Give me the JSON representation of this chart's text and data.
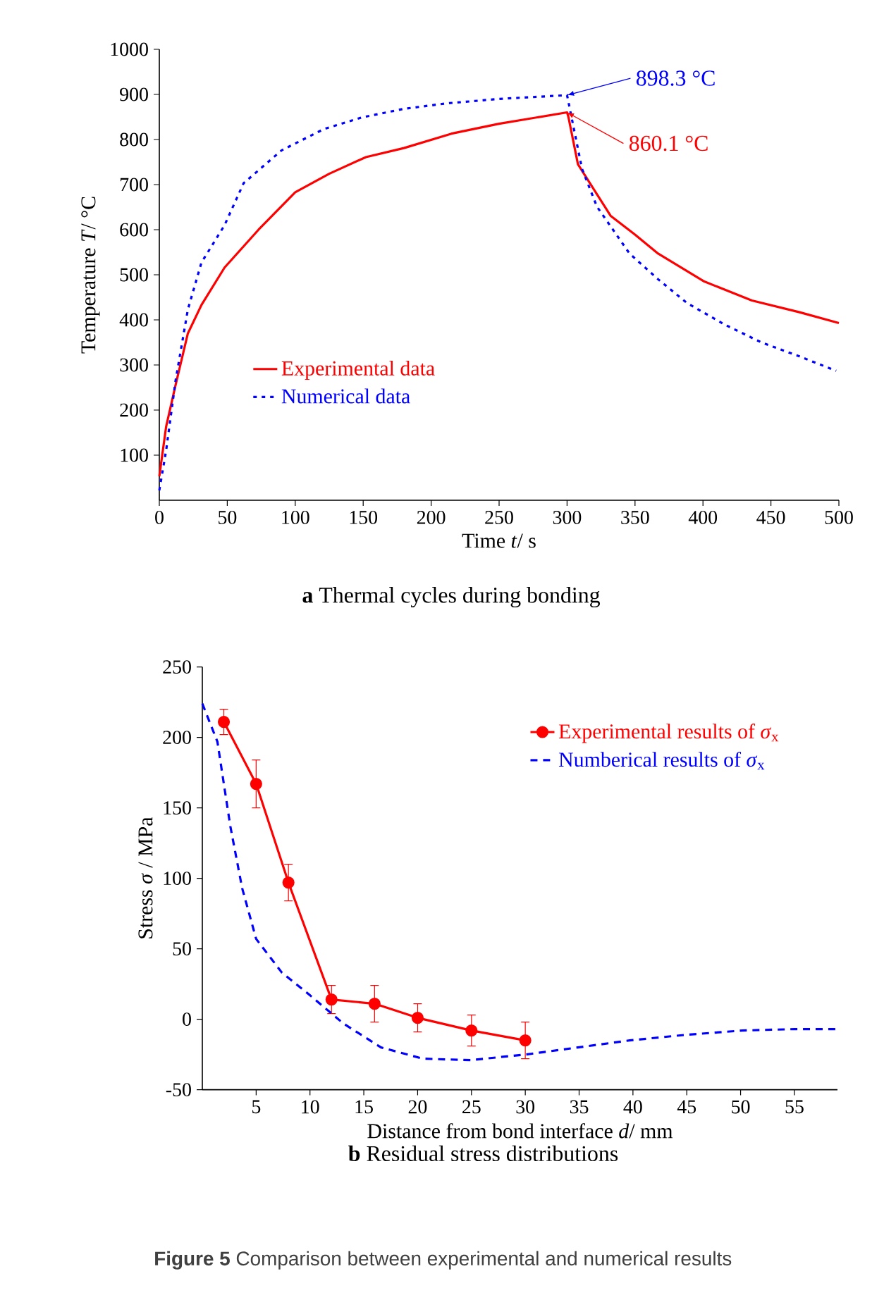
{
  "chart_data": [
    {
      "type": "line",
      "title": "**a** Thermal cycles during bonding",
      "xlabel": "Time *t*/ s",
      "ylabel": "Temperature *T*/ °C",
      "xlim": [
        0,
        500
      ],
      "ylim": [
        0,
        1000
      ],
      "xticks": [
        0,
        50,
        100,
        150,
        200,
        250,
        300,
        350,
        400,
        450,
        500
      ],
      "yticks": [
        100,
        200,
        300,
        400,
        500,
        600,
        700,
        800,
        900,
        1000
      ],
      "legend": "left",
      "annotations": [
        {
          "text": "898.3 °C",
          "x": 300,
          "y": 898.3
        },
        {
          "text": "860.1 °C",
          "x": 300,
          "y": 860.1
        }
      ],
      "series": [
        {
          "name": "Experimental data",
          "color": "#ff0000",
          "line_style": "solid",
          "x": [
            0,
            5,
            12,
            21,
            31,
            48,
            73,
            100,
            125,
            152,
            180,
            215,
            250,
            300,
            301,
            308,
            332,
            350,
            367,
            401,
            436,
            471,
            500
          ],
          "values": [
            53,
            163,
            256,
            370,
            433,
            516,
            600,
            683,
            724,
            761,
            781,
            813,
            835,
            860.1,
            850,
            745,
            631,
            589,
            547,
            485,
            443,
            417,
            393
          ]
        },
        {
          "name": "Numerical data",
          "color": "#0000ff",
          "line_style": "dotted",
          "x": [
            0,
            5,
            12,
            21,
            31,
            48,
            62,
            90,
            121,
            149,
            180,
            211,
            250,
            300,
            311,
            322,
            346,
            367,
            388,
            415,
            443,
            471,
            498
          ],
          "values": [
            22,
            110,
            266,
            423,
            527,
            610,
            703,
            776,
            823,
            849,
            868,
            880,
            890,
            898.3,
            735,
            651,
            547,
            490,
            438,
            391,
            350,
            319,
            287
          ]
        }
      ]
    },
    {
      "type": "line",
      "title": "**b** Residual stress distributions",
      "xlabel": "Distance from bond interface *d*/ mm",
      "ylabel": "Stress *σ* / MPa",
      "xlim": [
        0,
        59
      ],
      "ylim": [
        -50,
        250
      ],
      "xticks": [
        5,
        10,
        15,
        20,
        25,
        30,
        35,
        40,
        45,
        50,
        55
      ],
      "yticks": [
        -50,
        0,
        50,
        100,
        150,
        200,
        250
      ],
      "legend": "top right",
      "annotations": [
        "**Figure 5** Comparison between experimental and numerical results"
      ],
      "series": [
        {
          "name": "Experimental results of *σ*$_{x}$",
          "color": "#ff0000",
          "marker": "circle",
          "line_style": "solid",
          "x": [
            2,
            5,
            8,
            12,
            16,
            20,
            25,
            30
          ],
          "values": [
            211,
            167,
            97,
            14,
            11,
            1,
            -8,
            -15
          ],
          "errors": [
            9,
            17,
            13,
            10,
            13,
            10,
            11,
            13
          ]
        },
        {
          "name": "Numberical results of *σ*$_{x}$",
          "color": "#0000ff",
          "marker": "none",
          "line_style": "dashed",
          "x": [
            0,
            1.4,
            2.6,
            3.7,
            5,
            7.4,
            10,
            13.1,
            16.6,
            20.5,
            24.9,
            30.1,
            34.9,
            39.7,
            45,
            50.2,
            55,
            59
          ],
          "values": [
            224,
            197,
            137,
            93,
            57,
            33,
            17,
            -3,
            -20,
            -28,
            -29,
            -25,
            -20,
            -15,
            -11,
            -8,
            -7,
            -7
          ]
        }
      ]
    }
  ]
}
